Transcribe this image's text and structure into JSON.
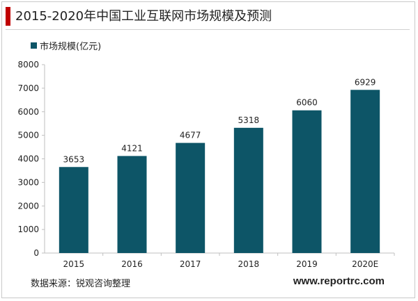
{
  "title": "2015-2020年中国工业互联网市场规模及预测",
  "source": "数据来源：锐观咨询整理",
  "website": "www.reportrc.com",
  "colors": {
    "accent": "#c00000",
    "bar": "#0d5567"
  },
  "chart_data": {
    "type": "bar",
    "categories": [
      "2015",
      "2016",
      "2017",
      "2018",
      "2019",
      "2020E"
    ],
    "series": [
      {
        "name": "市场规模(亿元)",
        "values": [
          3653,
          4121,
          4677,
          5318,
          6060,
          6929
        ]
      }
    ],
    "data_labels": [
      "3653",
      "4121",
      "4677",
      "5318",
      "6060",
      "6929"
    ],
    "yticks": [
      "0",
      "1000",
      "2000",
      "3000",
      "4000",
      "5000",
      "6000",
      "7000",
      "8000"
    ],
    "ylim": [
      0,
      8000
    ],
    "grid": false,
    "legend": "top-left"
  }
}
